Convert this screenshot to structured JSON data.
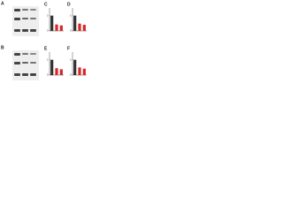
{
  "panels": [
    "A",
    "B"
  ],
  "chart_data": [
    {
      "type": "bar",
      "panel": "C",
      "values": [
        1,
        0.42,
        0.36
      ],
      "colors": [
        "#333333",
        "#d62728",
        "#d62728"
      ],
      "ylim": [
        0,
        1.5
      ],
      "yticks": [
        0,
        1
      ]
    },
    {
      "type": "bar",
      "panel": "D",
      "values": [
        1,
        0.48,
        0.4
      ],
      "colors": [
        "#333333",
        "#d62728",
        "#d62728"
      ],
      "ylim": [
        0,
        1.5
      ],
      "yticks": [
        0,
        1
      ]
    },
    {
      "type": "bar",
      "panel": "E",
      "values": [
        1,
        0.45,
        0.38
      ],
      "colors": [
        "#333333",
        "#d62728",
        "#d62728"
      ],
      "ylim": [
        0,
        1.5
      ],
      "yticks": [
        0,
        1
      ]
    },
    {
      "type": "bar",
      "panel": "F",
      "values": [
        1,
        0.5,
        0.42
      ],
      "colors": [
        "#333333",
        "#d62728",
        "#d62728"
      ],
      "ylim": [
        0,
        1.5
      ],
      "yticks": [
        0,
        1
      ]
    }
  ]
}
